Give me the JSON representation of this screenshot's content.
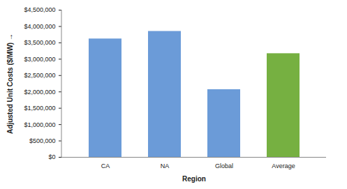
{
  "chart_data": {
    "type": "bar",
    "x_label": "Region",
    "y_label": "Adjusted Unit Costs ($/MW)",
    "categories": [
      "CA",
      "NA",
      "Global",
      "Average"
    ],
    "values": [
      3620000,
      3850000,
      2070000,
      3170000
    ],
    "colors": [
      "#6b9bd8",
      "#6b9bd8",
      "#6b9bd8",
      "#76b041"
    ],
    "ylim": [
      0,
      4500000
    ],
    "yticks": [
      {
        "value": 0,
        "label": "$0"
      },
      {
        "value": 500000,
        "label": "$500,000"
      },
      {
        "value": 1000000,
        "label": "$1,000,000"
      },
      {
        "value": 1500000,
        "label": "$1,500,000"
      },
      {
        "value": 2000000,
        "label": "$2,000,000"
      },
      {
        "value": 2500000,
        "label": "$2,500,000"
      },
      {
        "value": 3000000,
        "label": "$3,000,000"
      },
      {
        "value": 3500000,
        "label": "$3,500,000"
      },
      {
        "value": 4000000,
        "label": "$4,000,000"
      },
      {
        "value": 4500000,
        "label": "$4,500,000"
      }
    ],
    "grid": false
  }
}
